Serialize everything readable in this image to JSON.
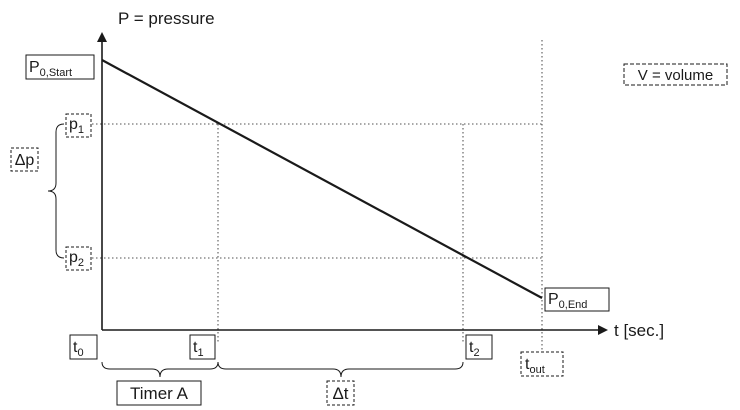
{
  "chart_data": {
    "type": "line",
    "title": "",
    "ylabel": "P = pressure",
    "xlabel": "t [sec.]",
    "series": [
      {
        "x": [
          "t0",
          "t1",
          "t2",
          "tout"
        ],
        "y": [
          "P0,Start",
          "p1",
          "p2",
          "P0,End"
        ]
      }
    ],
    "grid": false,
    "legend": "none"
  },
  "labels": {
    "y_axis": "P = pressure",
    "x_axis": "t [sec.]",
    "volume_note": "V = volume",
    "p_start": {
      "main": "P",
      "sub": "0,Start"
    },
    "p_end": {
      "main": "P",
      "sub": "0,End"
    },
    "p1": {
      "main": "p",
      "sub": "1"
    },
    "p2": {
      "main": "p",
      "sub": "2"
    },
    "delta_p": "Δp",
    "t0": {
      "main": "t",
      "sub": "0"
    },
    "t1": {
      "main": "t",
      "sub": "1"
    },
    "t2": {
      "main": "t",
      "sub": "2"
    },
    "t_out": {
      "main": "t",
      "sub": "out"
    },
    "timer_a": "Timer A",
    "delta_t": "Δt"
  },
  "colors": {
    "ink": "#1a1a1a",
    "background": "#ffffff"
  }
}
